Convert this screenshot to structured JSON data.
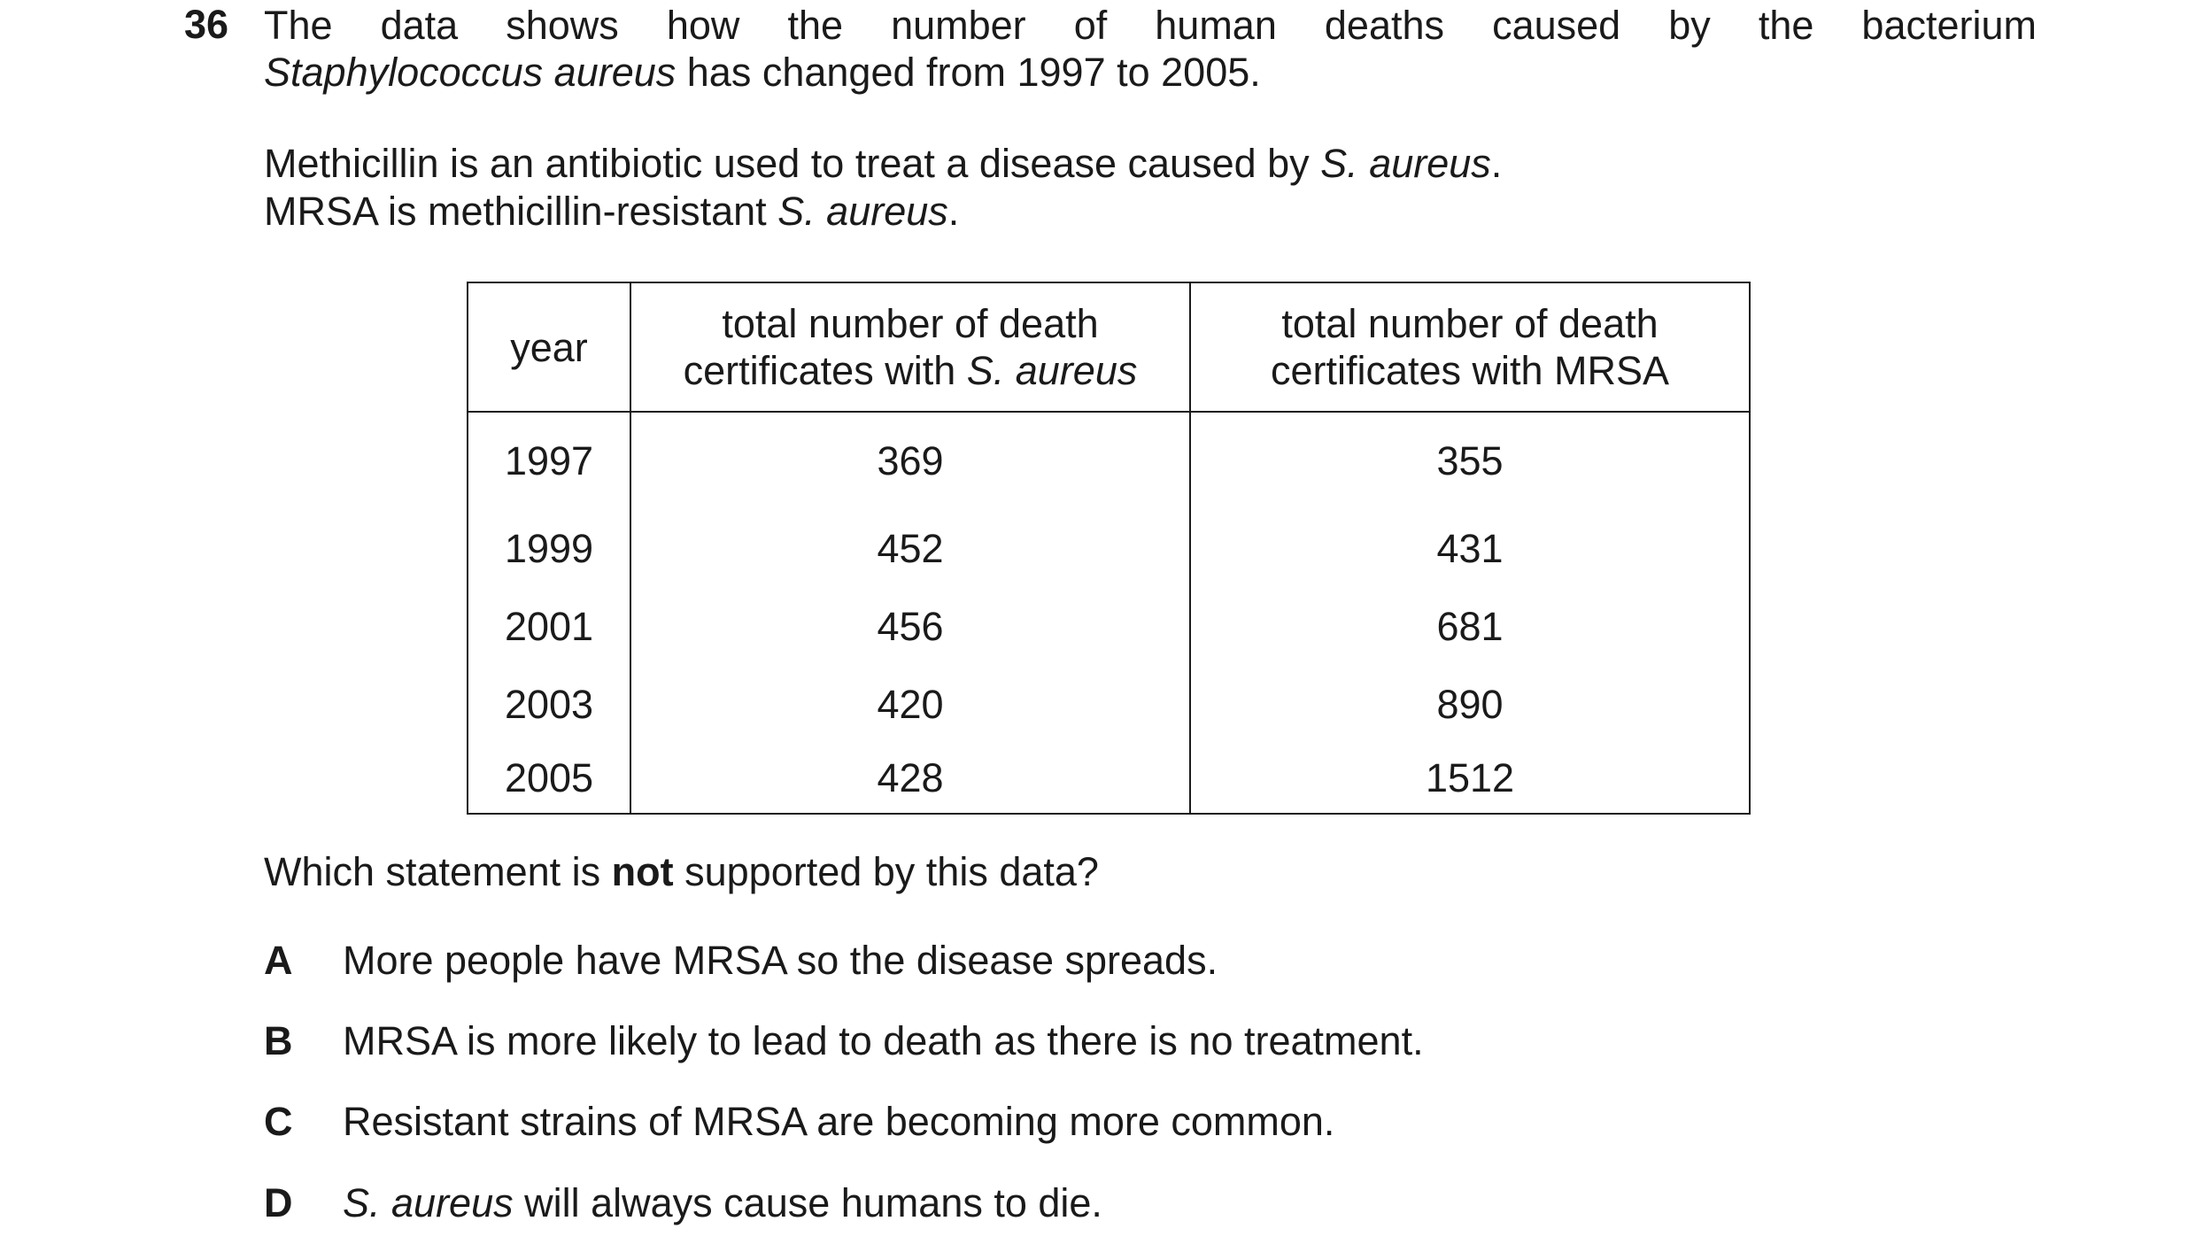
{
  "question": {
    "number": "36",
    "stem_line1_words": [
      "The",
      "data",
      "shows",
      "how",
      "the",
      "number",
      "of",
      "human",
      "deaths",
      "caused",
      "by",
      "the",
      "bacterium"
    ],
    "stem_line2_italic": "Staphylococcus aureus",
    "stem_line2_rest": " has changed from 1997 to 2005.",
    "para2_text": "Methicillin is an antibiotic used to treat a disease caused by ",
    "para2_italic": "S. aureus",
    "para2_end": ".",
    "para3_text": "MRSA is methicillin-resistant ",
    "para3_italic": "S. aureus",
    "para3_end": "."
  },
  "table": {
    "header_year": "year",
    "header_sa_line1": "total number of death",
    "header_sa_line2_text": "certificates with ",
    "header_sa_line2_italic": "S. aureus",
    "header_mrsa_line1": "total number of death",
    "header_mrsa_line2": "certificates with MRSA",
    "rows": [
      {
        "year": "1997",
        "s_aureus": "369",
        "mrsa": "355"
      },
      {
        "year": "1999",
        "s_aureus": "452",
        "mrsa": "431"
      },
      {
        "year": "2001",
        "s_aureus": "456",
        "mrsa": "681"
      },
      {
        "year": "2003",
        "s_aureus": "420",
        "mrsa": "890"
      },
      {
        "year": "2005",
        "s_aureus": "428",
        "mrsa": "1512"
      }
    ]
  },
  "prompt": {
    "before": "Which statement is ",
    "bold": "not",
    "after": " supported by this data?"
  },
  "options": [
    {
      "letter": "A",
      "text": "More people have MRSA so the disease spreads."
    },
    {
      "letter": "B",
      "text": "MRSA is more likely to lead to death as there is no treatment."
    },
    {
      "letter": "C",
      "text": "Resistant strains of MRSA are becoming more common."
    },
    {
      "letter": "D",
      "italic": "S. aureus",
      "text": " will always cause humans to die."
    }
  ]
}
